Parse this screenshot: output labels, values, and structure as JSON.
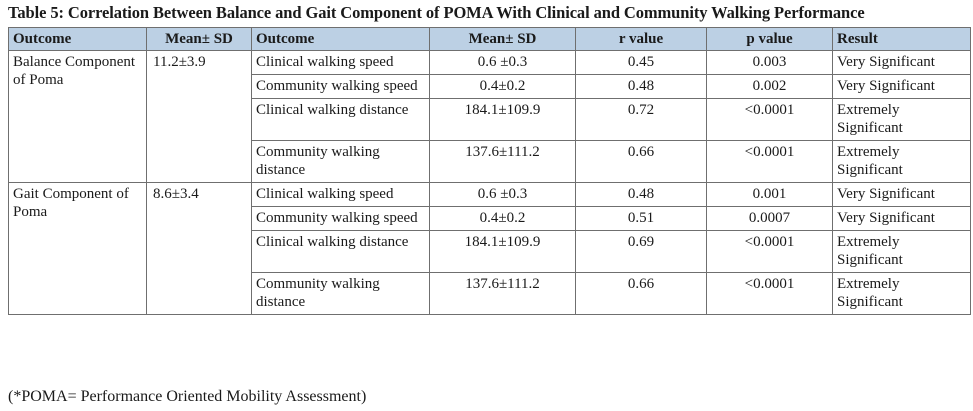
{
  "title": "Table 5: Correlation Between Balance and Gait Component of POMA With Clinical and Community Walking Performance",
  "headers": [
    "Outcome",
    "Mean± SD",
    "Outcome",
    "Mean± SD",
    "r value",
    "p value",
    "Result"
  ],
  "groups": [
    {
      "outcome": "Balance Component of Poma",
      "mean_sd": "11.2±3.9",
      "rows": [
        {
          "outcome": "Clinical walking speed",
          "mean_sd": "0.6 ±0.3",
          "r": "0.45",
          "p": "0.003",
          "result": "Very Significant"
        },
        {
          "outcome": "Community walking speed",
          "mean_sd": "0.4±0.2",
          "r": "0.48",
          "p": "0.002",
          "result": "Very Significant"
        },
        {
          "outcome": "Clinical walking distance",
          "mean_sd": "184.1±109.9",
          "r": "0.72",
          "p": "<0.0001",
          "result": "Extremely Significant"
        },
        {
          "outcome": "Community walking distance",
          "mean_sd": "137.6±111.2",
          "r": "0.66",
          "p": "<0.0001",
          "result": "Extremely Significant"
        }
      ]
    },
    {
      "outcome": "Gait Component of Poma",
      "mean_sd": "8.6±3.4",
      "rows": [
        {
          "outcome": "Clinical walking speed",
          "mean_sd": "0.6 ±0.3",
          "r": "0.48",
          "p": "0.001",
          "result": "Very Significant"
        },
        {
          "outcome": "Community walking speed",
          "mean_sd": "0.4±0.2",
          "r": "0.51",
          "p": "0.0007",
          "result": "Very Significant"
        },
        {
          "outcome": "Clinical walking distance",
          "mean_sd": "184.1±109.9",
          "r": "0.69",
          "p": "<0.0001",
          "result": "Extremely Significant"
        },
        {
          "outcome": "Community walking distance",
          "mean_sd": "137.6±111.2",
          "r": "0.66",
          "p": "<0.0001",
          "result": "Extremely Significant"
        }
      ]
    }
  ],
  "footnote": "(*POMA= Performance Oriented Mobility Assessment)",
  "colors": {
    "header_bg": "#bcd0e4",
    "border": "#6f6f6f"
  }
}
